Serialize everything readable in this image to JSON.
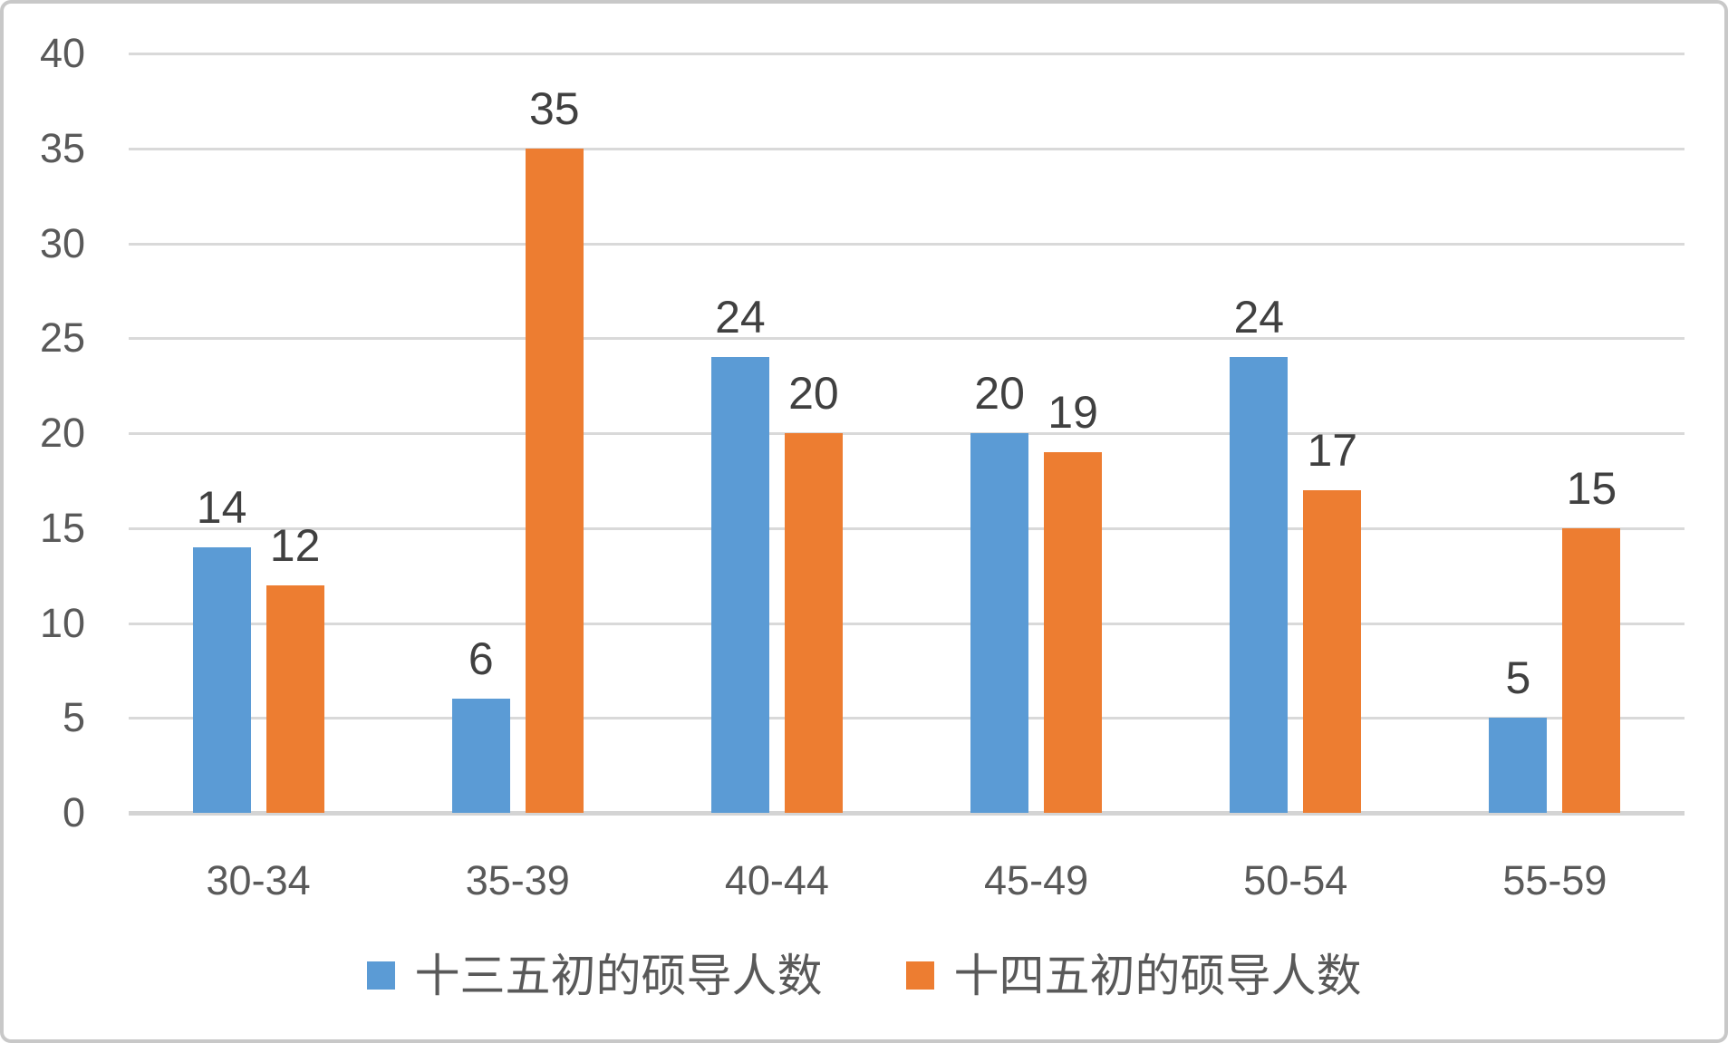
{
  "chart_data": {
    "type": "bar",
    "title": "",
    "xlabel": "",
    "ylabel": "",
    "categories": [
      "30-34",
      "35-39",
      "40-44",
      "45-49",
      "50-54",
      "55-59"
    ],
    "series": [
      {
        "name": "十三五初的硕导人数",
        "color": "#5B9BD5",
        "values": [
          14,
          6,
          24,
          20,
          24,
          5
        ]
      },
      {
        "name": "十四五初的硕导人数",
        "color": "#ED7D31",
        "values": [
          12,
          35,
          20,
          19,
          17,
          15
        ]
      }
    ],
    "ylim": [
      0,
      40
    ],
    "y_ticks": [
      0,
      5,
      10,
      15,
      20,
      25,
      30,
      35,
      40
    ],
    "grid": true,
    "data_labels": true,
    "legend_position": "bottom"
  },
  "colors": {
    "grid": "#D9D9D9",
    "axis_line": "#D4D4D4",
    "tick_label": "#595959",
    "data_label": "#404040",
    "legend_text": "#595959",
    "frame_border": "#C8C8C8",
    "background": "#FFFFFF"
  }
}
